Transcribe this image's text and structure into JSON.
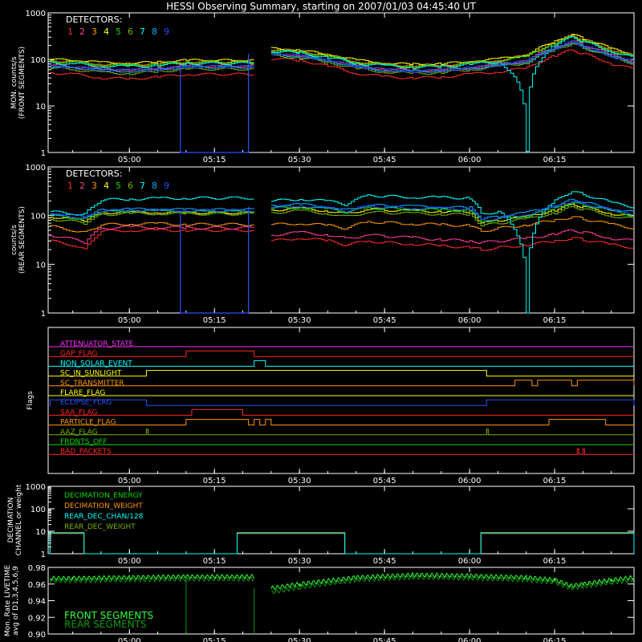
{
  "title": "HESSI Observing Summary, starting on 2007/01/03 04:45:40 UT",
  "colors": {
    "det": [
      "#ff2828",
      "#ff3c96",
      "#ff9600",
      "#ffff00",
      "#00dc00",
      "#78b400",
      "#00ffff",
      "#00aaff",
      "#2850ff"
    ],
    "axis": "#ffffff",
    "background": "#000000"
  },
  "chart_data": [
    {
      "type": "line",
      "panel": "front",
      "ylabel": "MON. counts/s (FRONT SEGMENTS)",
      "ylabel_lines": [
        "MON. counts/s",
        "(FRONT SEGMENTS)"
      ],
      "yscale": "log",
      "ylim": [
        1,
        1000
      ],
      "ytick_labels": [
        "1",
        "10",
        "100",
        "1000"
      ],
      "xtick_labels": [
        "05:00",
        "05:15",
        "05:30",
        "05:45",
        "06:00",
        "06:15"
      ],
      "legend_title": "DETECTORS:",
      "legend_entries": [
        "1",
        "2",
        "3",
        "4",
        "5",
        "6",
        "7",
        "8",
        "9"
      ],
      "x": [
        "04:46",
        "04:50",
        "04:55",
        "05:00",
        "05:05",
        "05:10",
        "05:22",
        "05:25",
        "05:30",
        "05:35",
        "05:40",
        "05:45",
        "05:50",
        "05:55",
        "06:00",
        "06:05",
        "06:10",
        "06:15",
        "06:18",
        "06:20",
        "06:25",
        "06:29"
      ],
      "series": [
        {
          "name": "1",
          "values": [
            52,
            48,
            40,
            38,
            42,
            48,
            null,
            105,
            95,
            70,
            50,
            42,
            40,
            42,
            48,
            55,
            65,
            120,
            160,
            130,
            80,
            60
          ]
        },
        {
          "name": "2",
          "values": [
            75,
            70,
            62,
            60,
            65,
            72,
            null,
            135,
            120,
            95,
            72,
            62,
            58,
            60,
            68,
            78,
            95,
            180,
            250,
            200,
            120,
            90
          ]
        },
        {
          "name": "3",
          "values": [
            95,
            90,
            80,
            78,
            82,
            90,
            null,
            165,
            150,
            120,
            90,
            78,
            74,
            76,
            85,
            98,
            120,
            230,
            330,
            260,
            160,
            115
          ]
        },
        {
          "name": "4",
          "values": [
            100,
            95,
            85,
            82,
            88,
            95,
            null,
            170,
            155,
            125,
            95,
            82,
            78,
            80,
            90,
            102,
            125,
            240,
            350,
            270,
            165,
            120
          ]
        },
        {
          "name": "5",
          "values": [
            90,
            86,
            76,
            74,
            78,
            86,
            null,
            158,
            142,
            115,
            86,
            75,
            70,
            72,
            82,
            94,
            115,
            220,
            310,
            245,
            150,
            110
          ]
        },
        {
          "name": "6",
          "values": [
            65,
            60,
            52,
            50,
            55,
            62,
            null,
            120,
            108,
            85,
            62,
            54,
            50,
            52,
            60,
            70,
            85,
            160,
            220,
            175,
            105,
            80
          ]
        },
        {
          "name": "7",
          "values": [
            85,
            80,
            72,
            70,
            74,
            82,
            null,
            150,
            135,
            108,
            82,
            72,
            68,
            70,
            78,
            90,
            1,
            210,
            300,
            235,
            145,
            105
          ]
        },
        {
          "name": "8",
          "values": [
            70,
            66,
            58,
            56,
            60,
            68,
            null,
            130,
            115,
            92,
            68,
            58,
            55,
            57,
            64,
            74,
            90,
            170,
            235,
            185,
            112,
            85
          ]
        },
        {
          "name": "9",
          "values": [
            72,
            68,
            60,
            58,
            62,
            70,
            null,
            132,
            118,
            94,
            70,
            60,
            56,
            58,
            66,
            76,
            92,
            175,
            240,
            190,
            115,
            88
          ]
        }
      ]
    },
    {
      "type": "line",
      "panel": "rear",
      "ylabel": "counts/s (REAR SEGMENTS)",
      "ylabel_lines": [
        "counts/s",
        "(REAR SEGMENTS)"
      ],
      "yscale": "log",
      "ylim": [
        1,
        1000
      ],
      "ytick_labels": [
        "1",
        "10",
        "100",
        "1000"
      ],
      "xtick_labels": [
        "05:00",
        "05:15",
        "05:30",
        "05:45",
        "06:00",
        "06:15"
      ],
      "legend_title": "DETECTORS:",
      "legend_entries": [
        "1",
        "2",
        "3",
        "4",
        "5",
        "6",
        "7",
        "8",
        "9"
      ],
      "x": [
        "04:46",
        "04:50",
        "04:52",
        "04:55",
        "05:00",
        "05:05",
        "05:10",
        "05:22",
        "05:25",
        "05:30",
        "05:35",
        "05:38",
        "05:42",
        "05:45",
        "05:50",
        "05:55",
        "06:00",
        "06:02",
        "06:05",
        "06:10",
        "06:15",
        "06:18",
        "06:20",
        "06:25",
        "06:29"
      ],
      "series": [
        {
          "name": "1",
          "values": [
            30,
            25,
            20,
            48,
            50,
            50,
            50,
            null,
            30,
            35,
            30,
            25,
            30,
            28,
            26,
            24,
            22,
            20,
            22,
            25,
            30,
            35,
            32,
            25,
            22
          ]
        },
        {
          "name": "2",
          "values": [
            40,
            32,
            28,
            55,
            58,
            58,
            56,
            null,
            40,
            45,
            40,
            34,
            40,
            38,
            35,
            32,
            30,
            28,
            30,
            34,
            42,
            50,
            45,
            34,
            30
          ]
        },
        {
          "name": "3",
          "values": [
            60,
            50,
            45,
            65,
            68,
            68,
            66,
            null,
            65,
            70,
            62,
            55,
            75,
            72,
            68,
            65,
            62,
            48,
            55,
            65,
            80,
            95,
            85,
            65,
            55
          ]
        },
        {
          "name": "4",
          "values": [
            95,
            85,
            80,
            115,
            118,
            118,
            115,
            null,
            130,
            140,
            125,
            110,
            135,
            130,
            125,
            122,
            120,
            70,
            80,
            95,
            130,
            170,
            150,
            110,
            95
          ]
        },
        {
          "name": "5",
          "values": [
            100,
            90,
            85,
            120,
            125,
            125,
            122,
            null,
            140,
            150,
            135,
            118,
            145,
            140,
            135,
            130,
            128,
            75,
            85,
            100,
            140,
            185,
            165,
            120,
            100
          ]
        },
        {
          "name": "6",
          "values": [
            85,
            75,
            70,
            105,
            110,
            110,
            108,
            null,
            115,
            125,
            110,
            95,
            118,
            115,
            110,
            108,
            105,
            62,
            70,
            85,
            115,
            150,
            135,
            98,
            85
          ]
        },
        {
          "name": "7",
          "values": [
            120,
            110,
            105,
            210,
            220,
            225,
            230,
            null,
            200,
            220,
            195,
            170,
            260,
            250,
            240,
            235,
            230,
            110,
            120,
            1,
            200,
            320,
            270,
            180,
            150
          ]
        },
        {
          "name": "8",
          "values": [
            110,
            100,
            95,
            130,
            135,
            135,
            132,
            null,
            160,
            170,
            150,
            130,
            165,
            160,
            155,
            150,
            145,
            85,
            95,
            115,
            160,
            210,
            185,
            135,
            115
          ]
        },
        {
          "name": "9",
          "values": [
            105,
            95,
            90,
            125,
            130,
            130,
            128,
            null,
            150,
            160,
            142,
            125,
            155,
            150,
            145,
            140,
            138,
            80,
            90,
            108,
            150,
            200,
            175,
            128,
            108
          ]
        }
      ]
    },
    {
      "type": "line",
      "panel": "flags",
      "ylabel": "Flags",
      "xtick_labels": [
        "05:00",
        "05:15",
        "05:30",
        "05:45",
        "06:00",
        "06:15"
      ],
      "series": [
        {
          "name": "ATTENUATOR_STATE",
          "color": "#ff2cff",
          "segments": []
        },
        {
          "name": "GAP_FLAG",
          "color": "#ff2828",
          "segments": [
            [
              "05:10",
              "05:22"
            ]
          ]
        },
        {
          "name": "NON_SOLAR_EVENT",
          "color": "#00ffff",
          "segments": [
            [
              "05:22",
              "05:24"
            ]
          ]
        },
        {
          "name": "SC_IN_SUNLIGHT",
          "color": "#ffff00",
          "segments": [
            [
              "05:03",
              "06:03"
            ]
          ]
        },
        {
          "name": "SC_TRANSMITTER",
          "color": "#ff9600",
          "segments": [
            [
              "06:08",
              "06:11"
            ],
            [
              "06:12",
              "06:18"
            ],
            [
              "06:19",
              "06:29"
            ]
          ]
        },
        {
          "name": "FLARE_FLAG",
          "color": "#ffff00",
          "segments": []
        },
        {
          "name": "ECLIPSE_FLAG",
          "color": "#2850ff",
          "segments": [
            [
              "04:46",
              "05:03"
            ],
            [
              "06:03",
              "06:29"
            ]
          ]
        },
        {
          "name": "SAA_FLAG",
          "color": "#ff2828",
          "segments": [
            [
              "05:11",
              "05:20"
            ]
          ]
        },
        {
          "name": "PARTICLE_FLAG",
          "color": "#ff9600",
          "segments": [
            [
              "05:10",
              "05:21"
            ],
            [
              "05:22",
              "05:23"
            ],
            [
              "05:24",
              "05:25"
            ],
            [
              "06:14",
              "06:24"
            ]
          ]
        },
        {
          "name": "AAZ_FLAG",
          "color": "#78b400",
          "segments": [
            [
              "05:03",
              "05:03"
            ],
            [
              "06:03",
              "06:03"
            ]
          ]
        },
        {
          "name": "FRONTS_OFF",
          "color": "#00dc00",
          "segments": []
        },
        {
          "name": "BAD_PACKETS",
          "color": "#ff2828",
          "segments": [
            [
              "06:19",
              "06:19"
            ],
            [
              "06:20",
              "06:20"
            ]
          ]
        }
      ]
    },
    {
      "type": "line",
      "panel": "decimation",
      "ylabel": "DECIMATION CHANNEL or weight",
      "ylabel_lines": [
        "DECIMATION",
        "CHANNEL or weight"
      ],
      "yscale": "log",
      "ylim": [
        1,
        1000
      ],
      "ytick_labels": [
        "1",
        "10",
        "100",
        "1000"
      ],
      "xtick_labels": [
        "05:00",
        "05:15",
        "05:30",
        "05:45",
        "06:00",
        "06:15"
      ],
      "series": [
        {
          "name": "DECIMATION_ENERGY",
          "color": "#00dc00",
          "values": []
        },
        {
          "name": "DECIMATION_WEIGHT",
          "color": "#ff9600",
          "values": [
            [
              [
                "04:46",
                "04:52"
              ],
              8
            ],
            [
              [
                "05:19",
                "05:38"
              ],
              8
            ],
            [
              [
                "06:02",
                "06:29"
              ],
              8
            ]
          ]
        },
        {
          "name": "REAR_DEC_CHAN/128",
          "color": "#00ffff",
          "values": [
            [
              [
                "04:46",
                "04:52"
              ],
              8
            ],
            [
              [
                "05:19",
                "05:38"
              ],
              8
            ],
            [
              [
                "06:02",
                "06:29"
              ],
              8
            ]
          ]
        },
        {
          "name": "REAR_DEC_WEIGHT",
          "color": "#78b400",
          "values": []
        }
      ]
    },
    {
      "type": "line",
      "panel": "livetime",
      "ylabel": "Mon. Rate LIVETIME avg of D1,3,4,5,6,9",
      "ylabel_lines": [
        "Mon. Rate LIVETIME",
        "avg of D1,3,4,5,6,9"
      ],
      "ylim": [
        0.9,
        0.98
      ],
      "ytick_labels": [
        "0.90",
        "0.92",
        "0.94",
        "0.96",
        "0.98"
      ],
      "xtick_labels": [
        "05:00",
        "05:15",
        "05:30",
        "05:45",
        "06:00",
        "06:15"
      ],
      "x": [
        "04:46",
        "04:50",
        "05:00",
        "05:10",
        "05:22",
        "05:25",
        "05:30",
        "05:40",
        "05:50",
        "06:00",
        "06:10",
        "06:15",
        "06:18",
        "06:20",
        "06:25",
        "06:29"
      ],
      "series": [
        {
          "name": "FRONT SEGMENTS",
          "color": "#33ff33",
          "values": [
            0.967,
            0.967,
            0.968,
            0.969,
            null,
            0.955,
            0.96,
            0.968,
            0.971,
            0.97,
            0.968,
            0.965,
            0.958,
            0.96,
            0.965,
            0.968
          ]
        },
        {
          "name": "REAR SEGMENTS",
          "color": "#0a9a0a",
          "values": [
            0.964,
            0.964,
            0.965,
            0.966,
            null,
            0.95,
            0.956,
            0.965,
            0.968,
            0.967,
            0.965,
            0.962,
            0.955,
            0.957,
            0.962,
            0.965
          ]
        }
      ]
    }
  ]
}
